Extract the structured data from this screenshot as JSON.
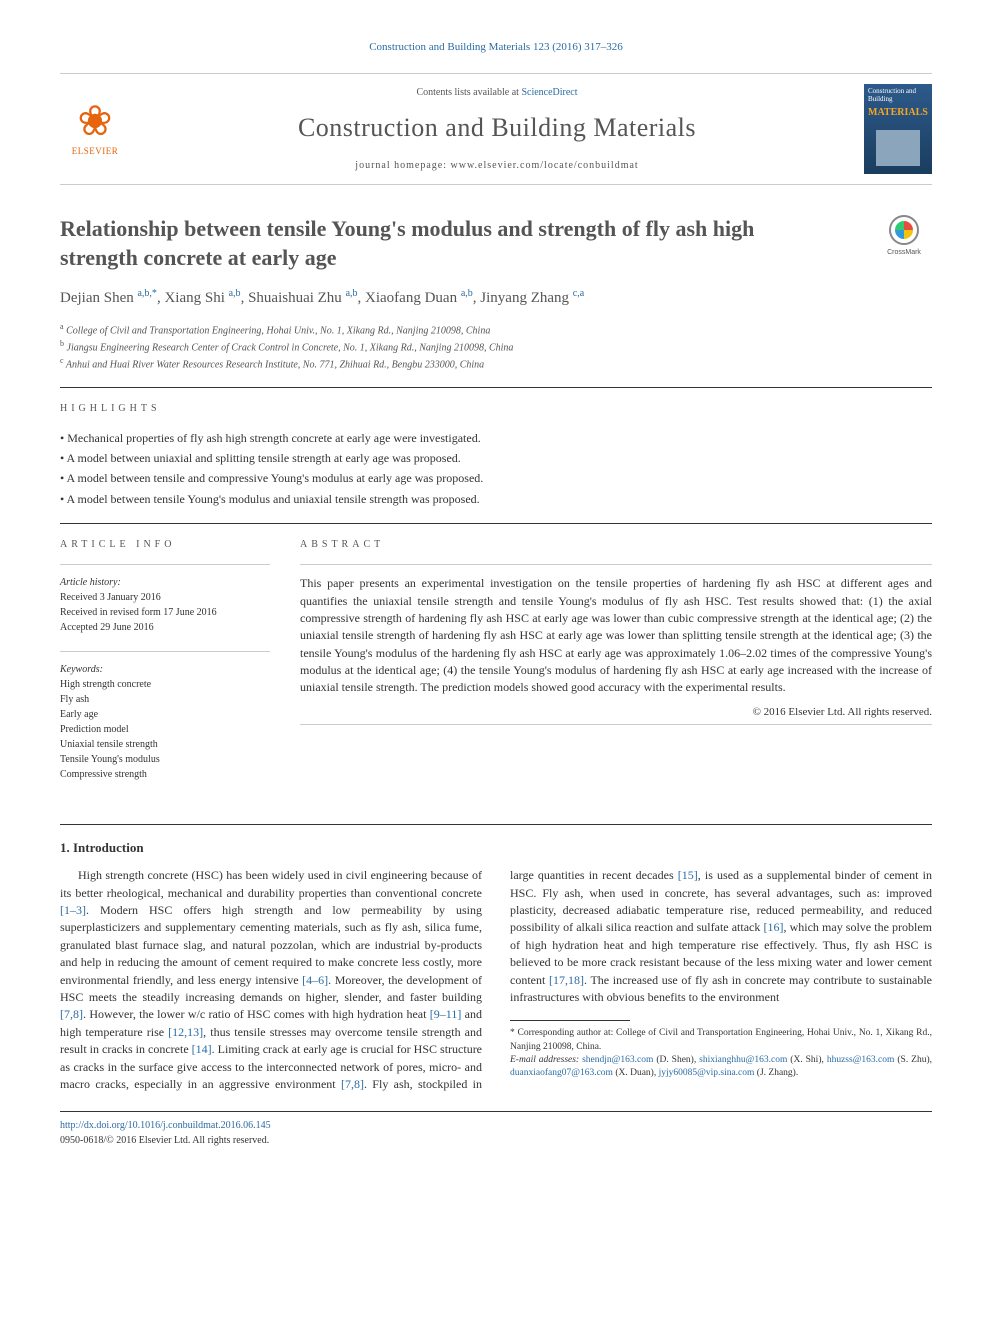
{
  "header": {
    "citation": "Construction and Building Materials 123 (2016) 317–326",
    "contents_prefix": "Contents lists available at ",
    "contents_link": "ScienceDirect",
    "journal_name": "Construction and Building Materials",
    "homepage_prefix": "journal homepage: ",
    "homepage_url": "www.elsevier.com/locate/conbuildmat",
    "publisher": "ELSEVIER",
    "cover_line1": "Construction and Building",
    "cover_line2": "MATERIALS",
    "crossmark": "CrossMark"
  },
  "article": {
    "title": "Relationship between tensile Young's modulus and strength of fly ash high strength concrete at early age",
    "authors_html": "Dejian Shen <sup>a,b,*</sup>, Xiang Shi <sup>a,b</sup>, Shuaishuai Zhu <sup>a,b</sup>, Xiaofang Duan <sup>a,b</sup>, Jinyang Zhang <sup>c,a</sup>",
    "affiliations": [
      {
        "sup": "a",
        "text": "College of Civil and Transportation Engineering, Hohai Univ., No. 1, Xikang Rd., Nanjing 210098, China"
      },
      {
        "sup": "b",
        "text": "Jiangsu Engineering Research Center of Crack Control in Concrete, No. 1, Xikang Rd., Nanjing 210098, China"
      },
      {
        "sup": "c",
        "text": "Anhui and Huai River Water Resources Research Institute, No. 771, Zhihuai Rd., Bengbu 233000, China"
      }
    ]
  },
  "highlights": {
    "label": "HIGHLIGHTS",
    "items": [
      "Mechanical properties of fly ash high strength concrete at early age were investigated.",
      "A model between uniaxial and splitting tensile strength at early age was proposed.",
      "A model between tensile and compressive Young's modulus at early age was proposed.",
      "A model between tensile Young's modulus and uniaxial tensile strength was proposed."
    ]
  },
  "info": {
    "label": "ARTICLE INFO",
    "history_label": "Article history:",
    "received": "Received 3 January 2016",
    "revised": "Received in revised form 17 June 2016",
    "accepted": "Accepted 29 June 2016",
    "keywords_label": "Keywords:",
    "keywords": [
      "High strength concrete",
      "Fly ash",
      "Early age",
      "Prediction model",
      "Uniaxial tensile strength",
      "Tensile Young's modulus",
      "Compressive strength"
    ]
  },
  "abstract": {
    "label": "ABSTRACT",
    "text": "This paper presents an experimental investigation on the tensile properties of hardening fly ash HSC at different ages and quantifies the uniaxial tensile strength and tensile Young's modulus of fly ash HSC. Test results showed that: (1) the axial compressive strength of hardening fly ash HSC at early age was lower than cubic compressive strength at the identical age; (2) the uniaxial tensile strength of hardening fly ash HSC at early age was lower than splitting tensile strength at the identical age; (3) the tensile Young's modulus of the hardening fly ash HSC at early age was approximately 1.06–2.02 times of the compressive Young's modulus at the identical age; (4) the tensile Young's modulus of hardening fly ash HSC at early age increased with the increase of uniaxial tensile strength. The prediction models showed good accuracy with the experimental results.",
    "copyright": "© 2016 Elsevier Ltd. All rights reserved."
  },
  "body": {
    "section_title": "1. Introduction",
    "para1_pre": "High strength concrete (HSC) has been widely used in civil engineering because of its better rheological, mechanical and durability properties than conventional concrete ",
    "ref1": "[1–3]",
    "para1_mid1": ". Modern HSC offers high strength and low permeability by using superplasticizers and supplementary cementing materials, such as fly ash, silica fume, granulated blast furnace slag, and natural pozzolan, which are industrial by-products and help in reducing the amount of cement required to make concrete less costly, more environmental friendly, and less energy intensive ",
    "ref2": "[4–6]",
    "para1_mid2": ". Moreover, the development of HSC meets the steadily increasing demands on higher, slender,",
    "para2_pre": "and faster building ",
    "ref3": "[7,8]",
    "para2_mid1": ". However, the lower w/c ratio of HSC comes with high hydration heat ",
    "ref4": "[9–11]",
    "para2_mid2": " and high temperature rise ",
    "ref5": "[12,13]",
    "para2_mid3": ", thus tensile stresses may overcome tensile strength and result in cracks in concrete ",
    "ref6": "[14]",
    "para2_mid4": ". Limiting crack at early age is crucial for HSC structure as cracks in the surface give access to the interconnected network of pores, micro- and macro cracks, especially in an aggressive environment ",
    "ref7": "[7,8]",
    "para2_mid5": ". Fly ash, stockpiled in large quantities in recent decades ",
    "ref8": "[15]",
    "para2_mid6": ", is used as a supplemental binder of cement in HSC. Fly ash, when used in concrete, has several advantages, such as: improved plasticity, decreased adiabatic temperature rise, reduced permeability, and reduced possibility of alkali silica reaction and sulfate attack ",
    "ref9": "[16]",
    "para2_mid7": ", which may solve the problem of high hydration heat and high temperature rise effectively. Thus, fly ash HSC is believed to be more crack resistant because of the less mixing water and lower cement content ",
    "ref10": "[17,18]",
    "para2_mid8": ". The increased use of fly ash in concrete may contribute to sustainable infrastructures with obvious benefits to the environment"
  },
  "footnotes": {
    "corr_label": "* Corresponding author at: College of Civil and Transportation Engineering, Hohai Univ., No. 1, Xikang Rd., Nanjing 210098, China.",
    "email_label": "E-mail addresses: ",
    "emails": [
      {
        "addr": "shendjn@163.com",
        "name": " (D. Shen), "
      },
      {
        "addr": "shixianghhu@163.com",
        "name": " (X. Shi), "
      },
      {
        "addr": "hhuzss@163.com",
        "name": " (S. Zhu), "
      },
      {
        "addr": "duanxiaofang07@163.com",
        "name": " (X. Duan), "
      },
      {
        "addr": "jyjy60085@vip.sina.com",
        "name": " (J. Zhang)."
      }
    ]
  },
  "footer": {
    "doi": "http://dx.doi.org/10.1016/j.conbuildmat.2016.06.145",
    "issn_line": "0950-0618/© 2016 Elsevier Ltd. All rights reserved."
  },
  "colors": {
    "link": "#2b6ca3",
    "elsevier": "#e5640c",
    "text": "#333333",
    "muted": "#555555"
  }
}
